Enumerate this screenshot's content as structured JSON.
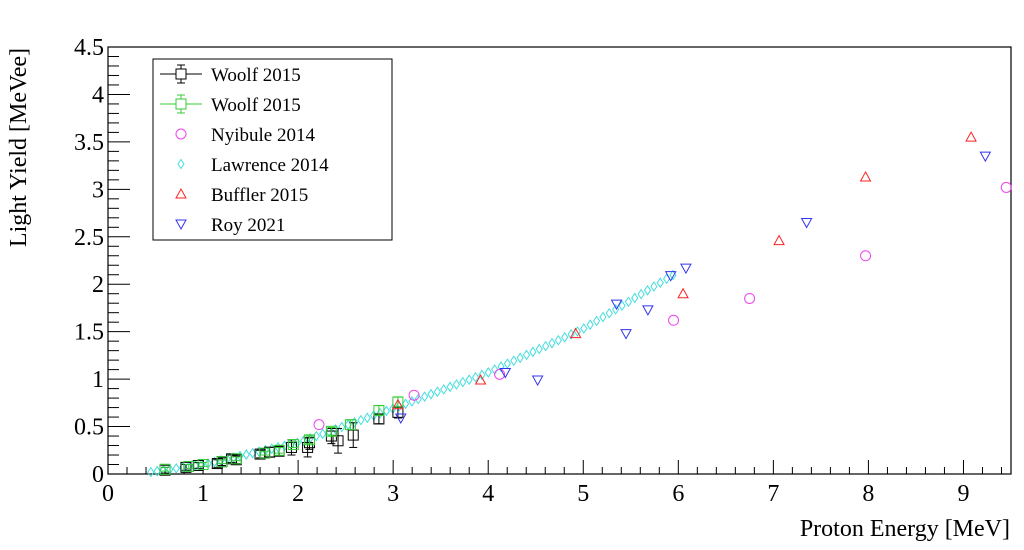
{
  "chart_data": {
    "type": "scatter",
    "title": "",
    "xlabel": "Proton Energy [MeV]",
    "ylabel": "Light Yield [MeVee]",
    "xlim": [
      0,
      9.5
    ],
    "ylim": [
      0,
      4.5
    ],
    "x_ticks": [
      0,
      1,
      2,
      3,
      4,
      5,
      6,
      7,
      8,
      9
    ],
    "y_ticks": [
      0,
      0.5,
      1,
      1.5,
      2,
      2.5,
      3,
      3.5,
      4,
      4.5
    ],
    "x_tick_labels": [
      "0",
      "1",
      "2",
      "3",
      "4",
      "5",
      "6",
      "7",
      "8",
      "9"
    ],
    "y_tick_labels": [
      "0",
      "0.5",
      "1",
      "1.5",
      "2",
      "2.5",
      "3",
      "3.5",
      "4",
      "4.5"
    ],
    "grid": false,
    "legend_position": "top-left",
    "series": [
      {
        "name": "Woolf 2015",
        "marker": "square-errorbar",
        "color": "#000000",
        "points": [
          [
            0.6,
            0.04,
            0.03
          ],
          [
            0.82,
            0.07,
            0.03
          ],
          [
            0.95,
            0.09,
            0.03
          ],
          [
            1.15,
            0.11,
            0.04
          ],
          [
            1.2,
            0.13,
            0.04
          ],
          [
            1.3,
            0.16,
            0.04
          ],
          [
            1.35,
            0.15,
            0.04
          ],
          [
            1.6,
            0.21,
            0.04
          ],
          [
            1.7,
            0.23,
            0.05
          ],
          [
            1.8,
            0.24,
            0.05
          ],
          [
            1.93,
            0.28,
            0.08
          ],
          [
            2.1,
            0.28,
            0.1
          ],
          [
            2.12,
            0.33,
            0.07
          ],
          [
            2.35,
            0.4,
            0.08
          ],
          [
            2.42,
            0.35,
            0.13
          ],
          [
            2.58,
            0.41,
            0.13
          ],
          [
            2.85,
            0.58,
            0.05
          ],
          [
            3.05,
            0.65,
            0.06
          ]
        ]
      },
      {
        "name": "Woolf 2015",
        "marker": "square-errorbar",
        "color": "#33cc33",
        "points": [
          [
            0.6,
            0.05,
            0.02
          ],
          [
            0.85,
            0.08,
            0.02
          ],
          [
            1.0,
            0.1,
            0.02
          ],
          [
            1.2,
            0.13,
            0.02
          ],
          [
            1.35,
            0.16,
            0.02
          ],
          [
            1.65,
            0.22,
            0.02
          ],
          [
            1.8,
            0.25,
            0.03
          ],
          [
            1.95,
            0.31,
            0.03
          ],
          [
            2.12,
            0.36,
            0.04
          ],
          [
            2.35,
            0.45,
            0.04
          ],
          [
            2.55,
            0.52,
            0.05
          ],
          [
            2.85,
            0.67,
            0.05
          ],
          [
            3.05,
            0.76,
            0.05
          ]
        ]
      },
      {
        "name": "Nyibule 2014",
        "marker": "circle",
        "color": "#ee44ee",
        "points": [
          [
            2.22,
            0.52
          ],
          [
            3.22,
            0.83
          ],
          [
            4.12,
            1.05
          ],
          [
            5.95,
            1.62
          ],
          [
            6.75,
            1.85
          ],
          [
            7.97,
            2.3
          ],
          [
            9.45,
            3.02
          ]
        ]
      },
      {
        "name": "Lawrence 2014",
        "marker": "diamond",
        "color": "#44dddd",
        "x_start": 0.45,
        "x_step": 0.067,
        "x_end": 5.95,
        "curve_points": [
          [
            0.45,
            0.02
          ],
          [
            1.0,
            0.1
          ],
          [
            2.0,
            0.33
          ],
          [
            3.0,
            0.69
          ],
          [
            4.0,
            1.07
          ],
          [
            5.0,
            1.53
          ],
          [
            5.95,
            2.1
          ]
        ]
      },
      {
        "name": "Buffler 2015",
        "marker": "triangle-up",
        "color": "#ff2222",
        "points": [
          [
            3.05,
            0.73
          ],
          [
            3.92,
            0.99
          ],
          [
            4.92,
            1.48
          ],
          [
            6.05,
            1.9
          ],
          [
            7.06,
            2.46
          ],
          [
            7.97,
            3.13
          ],
          [
            9.08,
            3.55
          ]
        ]
      },
      {
        "name": "Roy 2021",
        "marker": "triangle-down",
        "color": "#3333ee",
        "points": [
          [
            3.08,
            0.59
          ],
          [
            4.18,
            1.07
          ],
          [
            4.52,
            0.99
          ],
          [
            5.35,
            1.79
          ],
          [
            5.45,
            1.48
          ],
          [
            5.68,
            1.73
          ],
          [
            5.92,
            2.09
          ],
          [
            6.08,
            2.17
          ],
          [
            7.35,
            2.65
          ],
          [
            9.23,
            3.35
          ]
        ]
      }
    ]
  }
}
